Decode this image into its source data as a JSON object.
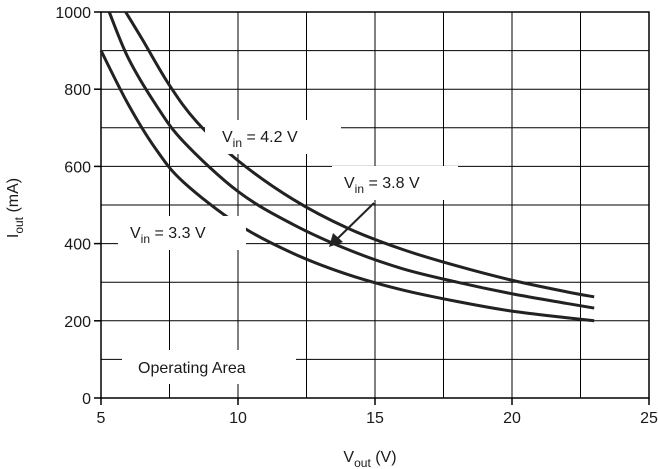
{
  "chart_data": {
    "type": "line",
    "title": "",
    "xlabel": {
      "main": "V",
      "sub": "out",
      "rest": " (V)"
    },
    "ylabel": {
      "main": "I",
      "sub": "out",
      "rest": " (mA)"
    },
    "xlim": [
      5,
      25
    ],
    "ylim": [
      0,
      1000
    ],
    "xticks": [
      5,
      10,
      15,
      20,
      25
    ],
    "yticks": [
      0,
      200,
      400,
      600,
      800,
      1000
    ],
    "grid": true,
    "series": [
      {
        "name": {
          "main": "V",
          "sub": "in",
          "rest": " = 4.2 V"
        },
        "x": [
          5.9,
          6.5,
          7.5,
          8.5,
          10,
          12,
          14,
          16,
          18,
          20,
          22,
          23
        ],
        "y": [
          1000,
          930,
          810,
          715,
          615,
          515,
          440,
          385,
          342,
          305,
          275,
          262
        ]
      },
      {
        "name": {
          "main": "V",
          "sub": "in",
          "rest": " = 3.8 V"
        },
        "x": [
          5.3,
          6,
          7,
          8,
          10,
          12,
          14,
          16,
          18,
          20,
          22,
          23
        ],
        "y": [
          1000,
          880,
          760,
          665,
          535,
          450,
          385,
          335,
          300,
          270,
          245,
          233
        ]
      },
      {
        "name": {
          "main": "V",
          "sub": "in",
          "rest": " = 3.3 V"
        },
        "x": [
          5,
          6,
          7,
          8,
          10,
          12,
          14,
          16,
          18,
          20,
          22,
          23
        ],
        "y": [
          900,
          760,
          645,
          560,
          450,
          375,
          320,
          280,
          250,
          225,
          208,
          200
        ]
      }
    ],
    "annotations": {
      "operating_area": "Operating Area"
    }
  }
}
